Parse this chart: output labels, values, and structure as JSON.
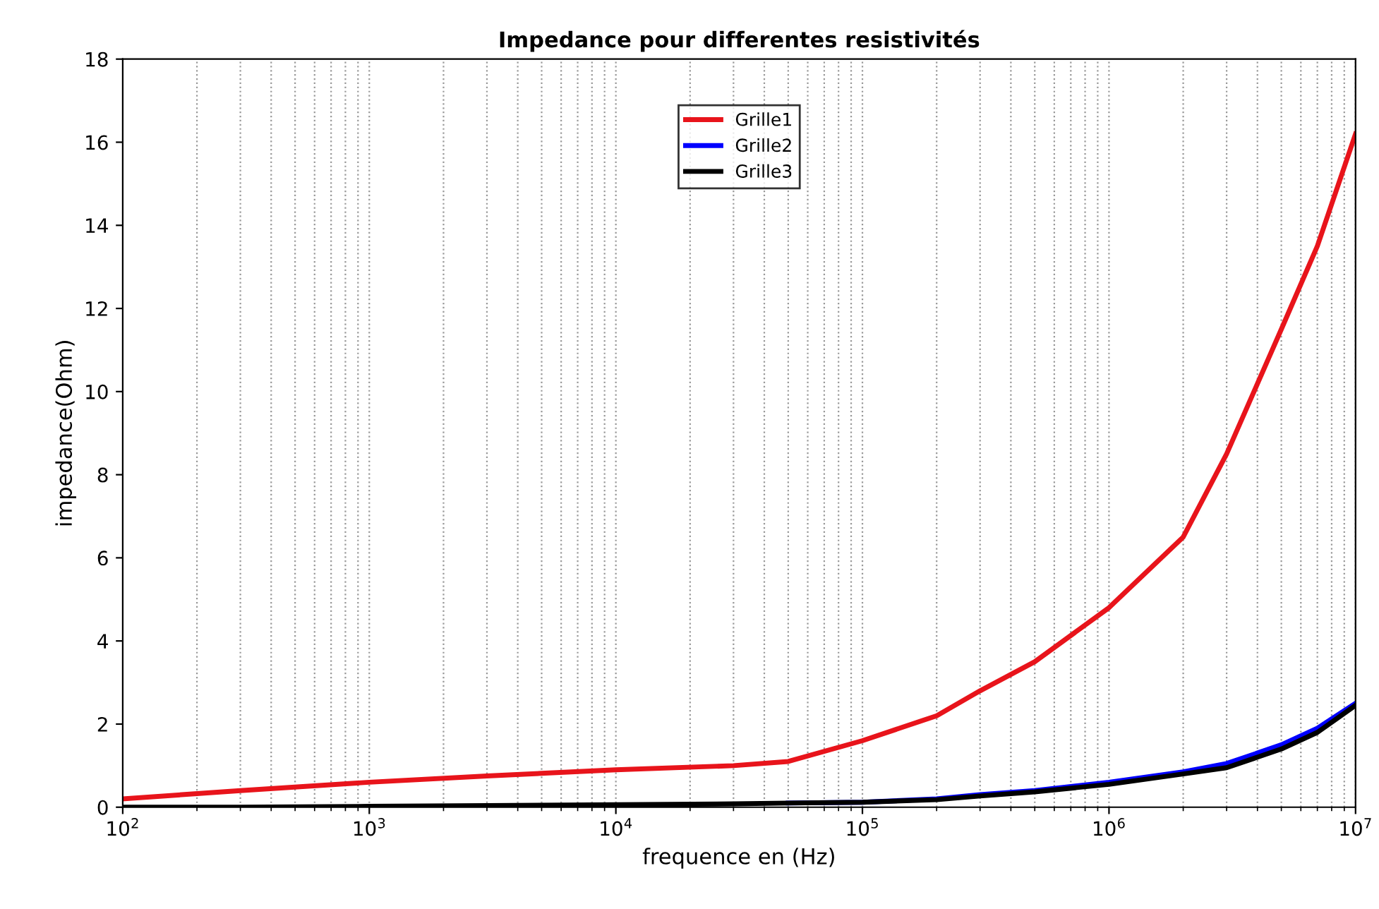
{
  "chart_data": {
    "type": "line",
    "title": "Impedance pour differentes resistivités",
    "xlabel": "frequence en (Hz)",
    "ylabel": "impedance(Ohm)",
    "log": "x",
    "grid": "x",
    "legend": "top center",
    "line_style": "solid",
    "marker": "none",
    "xlim": [
      100,
      10000000
    ],
    "xticks": [
      {
        "value": 100,
        "label": "10$^{2}$"
      },
      {
        "value": 1000,
        "label": "10$^{3}$"
      },
      {
        "value": 10000,
        "label": "10$^{4}$"
      },
      {
        "value": 100000,
        "label": "10$^{5}$"
      },
      {
        "value": 1000000,
        "label": "10$^{6}$"
      },
      {
        "value": 10000000,
        "label": "10$^{7}$"
      }
    ],
    "ylim": [
      0,
      18
    ],
    "yticks": [
      0,
      2,
      4,
      6,
      8,
      10,
      12,
      14,
      16,
      18
    ],
    "x": [
      100,
      300,
      1000,
      3000,
      10000,
      30000,
      50000,
      100000,
      200000,
      300000,
      500000,
      1000000,
      2000000,
      3000000,
      5000000,
      7000000,
      10000000
    ],
    "series": [
      {
        "name": "Grille1",
        "color": "#e8141b",
        "values": [
          0.2,
          0.4,
          0.6,
          0.75,
          0.9,
          1.0,
          1.1,
          1.6,
          2.2,
          2.8,
          3.5,
          4.8,
          6.5,
          8.5,
          11.5,
          13.5,
          16.2
        ]
      },
      {
        "name": "Grille2",
        "color": "#0000ff",
        "values": [
          null,
          null,
          null,
          null,
          null,
          null,
          0.1,
          0.12,
          0.2,
          0.3,
          0.4,
          0.6,
          0.85,
          1.05,
          1.5,
          1.9,
          2.5
        ]
      },
      {
        "name": "Grille3",
        "color": "#000000",
        "values": [
          0.0,
          0.0,
          0.02,
          0.04,
          0.06,
          0.08,
          0.1,
          0.12,
          0.18,
          0.27,
          0.37,
          0.55,
          0.8,
          0.95,
          1.4,
          1.8,
          2.45
        ]
      }
    ]
  }
}
